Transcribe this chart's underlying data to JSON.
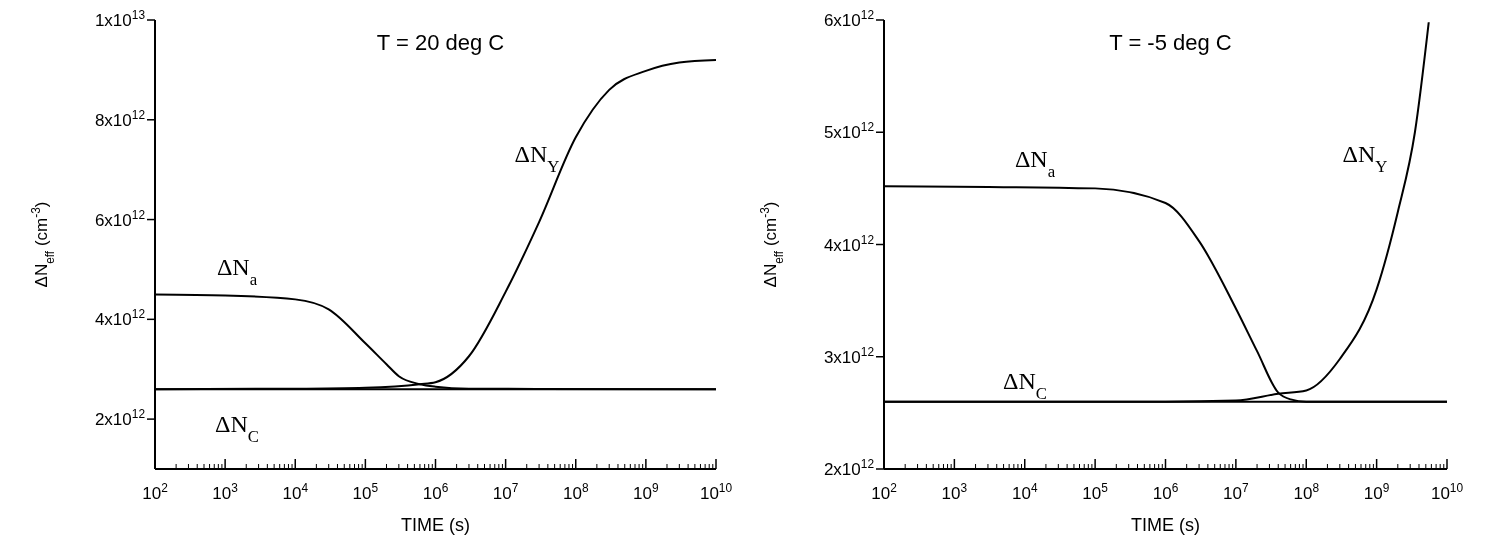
{
  "chart_data": [
    {
      "type": "line",
      "title": "T = 20 deg C",
      "xlabel": "TIME (s)",
      "ylabel": "ΔN$_{eff}$ (cm$^{-3}$)",
      "log": "x",
      "grid": false,
      "marker": "none",
      "line_style": "solid",
      "xlim": [
        100,
        10000000000
      ],
      "xticks": [
        {
          "value": 100,
          "label": "10$^{2}$"
        },
        {
          "value": 1000,
          "label": "10$^{3}$"
        },
        {
          "value": 10000,
          "label": "10$^{4}$"
        },
        {
          "value": 100000,
          "label": "10$^{5}$"
        },
        {
          "value": 1000000,
          "label": "10$^{6}$"
        },
        {
          "value": 10000000,
          "label": "10$^{7}$"
        },
        {
          "value": 100000000,
          "label": "10$^{8}$"
        },
        {
          "value": 1000000000,
          "label": "10$^{9}$"
        },
        {
          "value": 10000000000,
          "label": "10$^{10}$"
        }
      ],
      "ylim": [
        1000000000000,
        10000000000000
      ],
      "yticks": [
        {
          "value": 2000000000000,
          "label": "2x10$^{12}$"
        },
        {
          "value": 4000000000000,
          "label": "4x10$^{12}$"
        },
        {
          "value": 6000000000000,
          "label": "6x10$^{12}$"
        },
        {
          "value": 8000000000000,
          "label": "8x10$^{12}$"
        },
        {
          "value": 10000000000000,
          "label": "1x10$^{13}$"
        }
      ],
      "series": [
        {
          "name": "ΔN$_{a}$",
          "color": "#000000",
          "x": [
            100,
            1000,
            10000,
            30000,
            100000,
            200000,
            300000,
            600000,
            1000000,
            3000000,
            10000000000
          ],
          "values": [
            4500000000000,
            4480000000000,
            4400000000000,
            4200000000000,
            3520000000000,
            3100000000000,
            2860000000000,
            2700000000000,
            2650000000000,
            2610000000000,
            2600000000000
          ]
        },
        {
          "name": "ΔN$_{C}$",
          "color": "#000000",
          "x": [
            100,
            10000000000
          ],
          "values": [
            2600000000000,
            2600000000000
          ]
        },
        {
          "name": "ΔN$_{Y}$",
          "color": "#000000",
          "x": [
            100,
            10000,
            100000,
            600000,
            1000000,
            3000000,
            10000000,
            30000000,
            100000000,
            300000000,
            1000000000,
            3000000000,
            10000000000
          ],
          "values": [
            2600000000000,
            2610000000000,
            2630000000000,
            2700000000000,
            2740000000000,
            3260000000000,
            4550000000000,
            5950000000000,
            7650000000000,
            8600000000000,
            8980000000000,
            9150000000000,
            9200000000000
          ]
        }
      ]
    },
    {
      "type": "line",
      "title": "T =  -5 deg C",
      "xlabel": "TIME (s)",
      "ylabel": "ΔN$_{eff}$ (cm$^{-3}$)",
      "log": "x",
      "grid": false,
      "marker": "none",
      "line_style": "solid",
      "xlim": [
        100,
        10000000000
      ],
      "xticks": [
        {
          "value": 100,
          "label": "10$^{2}$"
        },
        {
          "value": 1000,
          "label": "10$^{3}$"
        },
        {
          "value": 10000,
          "label": "10$^{4}$"
        },
        {
          "value": 100000,
          "label": "10$^{5}$"
        },
        {
          "value": 1000000,
          "label": "10$^{6}$"
        },
        {
          "value": 10000000,
          "label": "10$^{7}$"
        },
        {
          "value": 100000000,
          "label": "10$^{8}$"
        },
        {
          "value": 1000000000,
          "label": "10$^{9}$"
        },
        {
          "value": 10000000000,
          "label": "10$^{10}$"
        }
      ],
      "ylim": [
        2000000000000,
        6000000000000
      ],
      "yticks": [
        {
          "value": 2000000000000,
          "label": "2x10$^{12}$"
        },
        {
          "value": 3000000000000,
          "label": "3x10$^{12}$"
        },
        {
          "value": 4000000000000,
          "label": "4x10$^{12}$"
        },
        {
          "value": 5000000000000,
          "label": "5x10$^{12}$"
        },
        {
          "value": 6000000000000,
          "label": "6x10$^{12}$"
        }
      ],
      "series": [
        {
          "name": "ΔN$_{a}$",
          "color": "#000000",
          "x": [
            100,
            100000,
            1000000,
            3000000,
            10000000,
            20000000,
            40000000,
            60000000,
            100000000,
            10000000000
          ],
          "values": [
            4520000000000,
            4500000000000,
            4370000000000,
            4030000000000,
            3430000000000,
            3050000000000,
            2680000000000,
            2620000000000,
            2600000000000,
            2600000000000
          ]
        },
        {
          "name": "ΔN$_{C}$",
          "color": "#000000",
          "x": [
            100,
            10000000000
          ],
          "values": [
            2600000000000,
            2600000000000
          ]
        },
        {
          "name": "ΔN$_{Y}$",
          "color": "#000000",
          "x": [
            100,
            1000000,
            10000000,
            40000000,
            100000000,
            300000000,
            1000000000,
            2000000000,
            3500000000,
            5500000000
          ],
          "values": [
            2600000000000,
            2600000000000,
            2610000000000,
            2670000000000,
            2700000000000,
            2980000000000,
            3600000000000,
            4290000000000,
            5000000000000,
            5980000000000
          ]
        }
      ]
    }
  ]
}
